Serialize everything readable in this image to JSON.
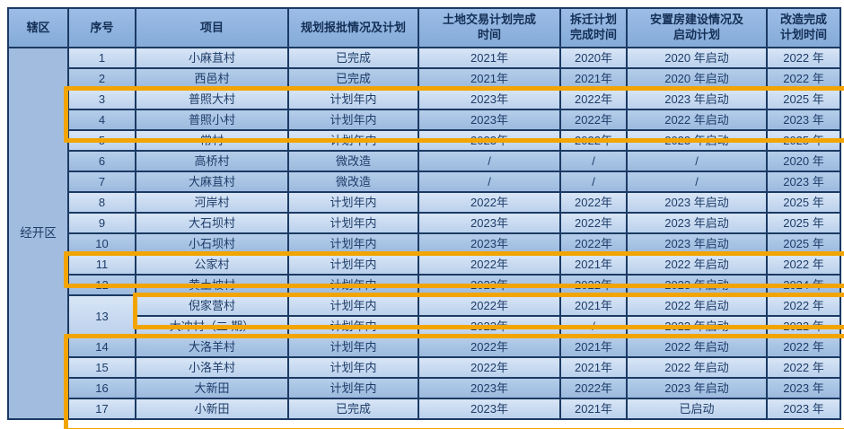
{
  "table": {
    "headers": [
      "辖区",
      "序号",
      "项目",
      "规划报批情况及计划",
      "土地交易计划完成\n时间",
      "拆迁计划\n完成时间",
      "安置房建设情况及\n启动计划",
      "改造完成\n计划时间"
    ],
    "district": "经开区",
    "rows": [
      {
        "seq": "1",
        "shade": "light",
        "name": "小麻苴村",
        "plan": "已完成",
        "land": "2021年",
        "demolition": "2020年",
        "resettle": "2020 年启动",
        "complete": "2022 年"
      },
      {
        "seq": "2",
        "shade": "medium",
        "name": "西邑村",
        "plan": "已完成",
        "land": "2021年",
        "demolition": "2021年",
        "resettle": "2020 年启动",
        "complete": "2022 年"
      },
      {
        "seq": "3",
        "shade": "light",
        "name": "普照大村",
        "plan": "计划年内",
        "land": "2023年",
        "demolition": "2022年",
        "resettle": "2023 年启动",
        "complete": "2025 年"
      },
      {
        "seq": "4",
        "shade": "medium",
        "name": "普照小村",
        "plan": "计划年内",
        "land": "2023年",
        "demolition": "2022年",
        "resettle": "2022 年启动",
        "complete": "2023 年"
      },
      {
        "seq": "5",
        "shade": "light",
        "name": "常村",
        "plan": "计划年内",
        "land": "2023年",
        "demolition": "2022年",
        "resettle": "2023 年启动",
        "complete": "2025 年"
      },
      {
        "seq": "6",
        "shade": "medium",
        "name": "高桥村",
        "plan": "微改造",
        "land": "/",
        "demolition": "/",
        "resettle": "/",
        "complete": "2020 年"
      },
      {
        "seq": "7",
        "shade": "medium",
        "name": "大麻苴村",
        "plan": "微改造",
        "land": "/",
        "demolition": "/",
        "resettle": "/",
        "complete": "2023 年"
      },
      {
        "seq": "8",
        "shade": "light",
        "name": "河岸村",
        "plan": "计划年内",
        "land": "2022年",
        "demolition": "2022年",
        "resettle": "2023 年启动",
        "complete": "2025 年"
      },
      {
        "seq": "9",
        "shade": "light",
        "name": "大石坝村",
        "plan": "计划年内",
        "land": "2023年",
        "demolition": "2022年",
        "resettle": "2023 年启动",
        "complete": "2025 年"
      },
      {
        "seq": "10",
        "shade": "medium",
        "name": "小石坝村",
        "plan": "计划年内",
        "land": "2023年",
        "demolition": "2022年",
        "resettle": "2023 年启动",
        "complete": "2025 年"
      },
      {
        "seq": "11",
        "shade": "light",
        "name": "公家村",
        "plan": "计划年内",
        "land": "2022年",
        "demolition": "2021年",
        "resettle": "2022 年启动",
        "complete": "2022 年"
      },
      {
        "seq": "12",
        "shade": "medium",
        "name": "黄土坡村",
        "plan": "计划年内",
        "land": "2023年",
        "demolition": "2022年",
        "resettle": "2023 年启动",
        "complete": "2024 年"
      },
      {
        "seq": "13",
        "seq_rowspan": 2,
        "shade": "light",
        "name": "倪家营村",
        "plan": "计划年内",
        "land": "2022年",
        "demolition": "2021年",
        "resettle": "2022 年启动",
        "complete": "2022 年"
      },
      {
        "seq": null,
        "shade": "light",
        "name": "大冲村（二 期）",
        "plan": "计划年内",
        "land": "2022年",
        "demolition": "/",
        "resettle": "2022 年启动",
        "complete": "2022 年"
      },
      {
        "seq": "14",
        "shade": "medium",
        "name": "大洛羊村",
        "plan": "计划年内",
        "land": "2022年",
        "demolition": "2021年",
        "resettle": "2022 年启动",
        "complete": "2022 年"
      },
      {
        "seq": "15",
        "shade": "light",
        "name": "小洛羊村",
        "plan": "计划年内",
        "land": "2022年",
        "demolition": "2021年",
        "resettle": "2022 年启动",
        "complete": "2022 年"
      },
      {
        "seq": "16",
        "shade": "medium",
        "name": "大新田",
        "plan": "计划年内",
        "land": "2023年",
        "demolition": "2022年",
        "resettle": "2023 年启动",
        "complete": "2023 年"
      },
      {
        "seq": "17",
        "shade": "light",
        "name": "小新田",
        "plan": "已完成",
        "land": "2023年",
        "demolition": "2021年",
        "resettle": "已启动",
        "complete": "2023 年"
      }
    ]
  },
  "highlights": [
    {
      "label": "rows-3-4"
    },
    {
      "label": "row-11"
    },
    {
      "label": "row-13a"
    },
    {
      "label": "rows-14-17"
    }
  ],
  "colors": {
    "highlight": "#F1A402",
    "header_bg": "#8DB4E2",
    "row_light": "#C9DBF0",
    "row_medium": "#A8C4E4",
    "district_bg": "#A2BCDF",
    "border": "#1B3A63",
    "text": "#1D3C68"
  }
}
